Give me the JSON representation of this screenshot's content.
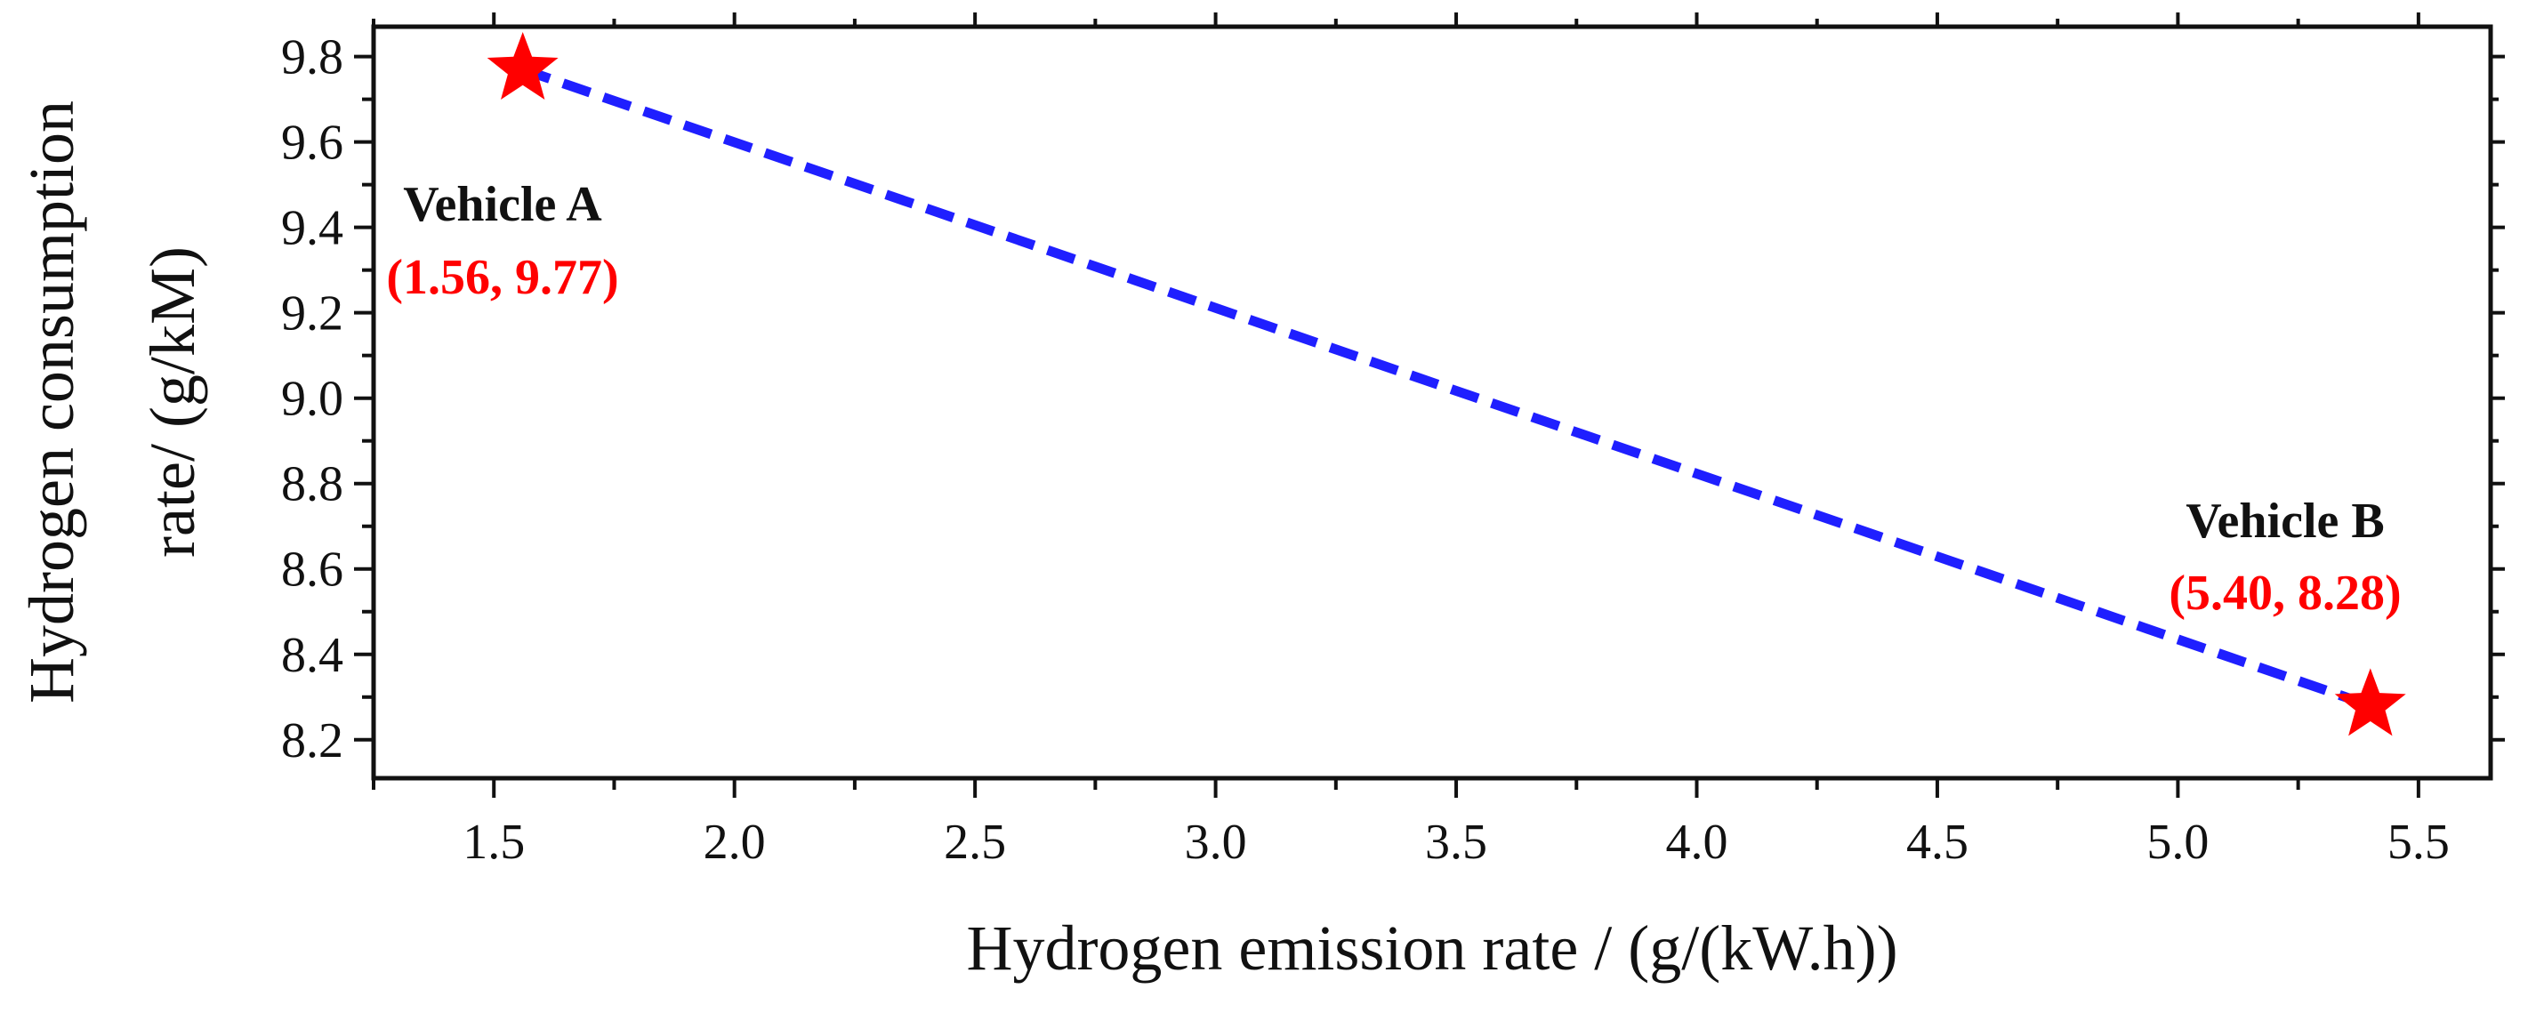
{
  "chart_data": {
    "type": "scatter",
    "title": "",
    "xlabel": "Hydrogen emission rate / (g/(kW.h))",
    "ylabel_lines": [
      "Hydrogen consumption",
      "rate/ (g/kM)"
    ],
    "xlim": [
      1.25,
      5.65
    ],
    "ylim": [
      8.11,
      9.87
    ],
    "xticks": [
      1.5,
      2.0,
      2.5,
      3.0,
      3.5,
      4.0,
      4.5,
      5.0,
      5.5
    ],
    "xtick_labels": [
      "1.5",
      "2.0",
      "2.5",
      "3.0",
      "3.5",
      "4.0",
      "4.5",
      "5.0",
      "5.5"
    ],
    "yticks": [
      8.2,
      8.4,
      8.6,
      8.8,
      9.0,
      9.2,
      9.4,
      9.6,
      9.8
    ],
    "ytick_labels": [
      "8.2",
      "8.4",
      "8.6",
      "8.8",
      "9.0",
      "9.2",
      "9.4",
      "9.6",
      "9.8"
    ],
    "grid": false,
    "points": [
      {
        "name": "Vehicle A",
        "x": 1.56,
        "y": 9.77,
        "coord_label": "(1.56, 9.77)",
        "marker": "star",
        "color": "#ff0000"
      },
      {
        "name": "Vehicle B",
        "x": 5.4,
        "y": 8.28,
        "coord_label": "(5.40, 8.28)",
        "marker": "star",
        "color": "#ff0000"
      }
    ],
    "line": {
      "style": "dashed",
      "color": "#1f1fff",
      "connects": [
        "Vehicle A",
        "Vehicle B"
      ]
    }
  }
}
